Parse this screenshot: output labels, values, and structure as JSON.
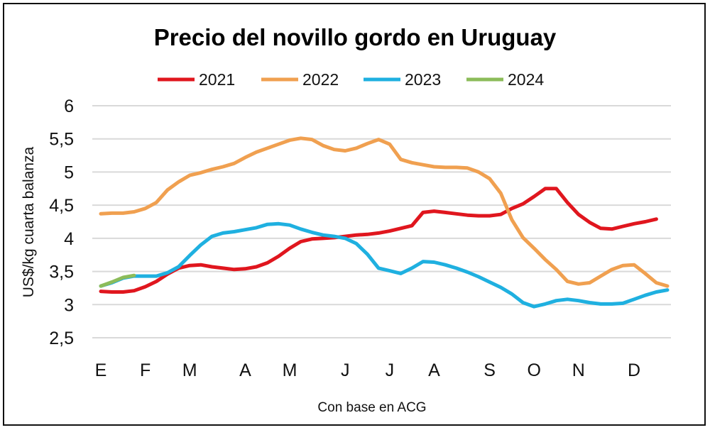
{
  "chart_data": {
    "type": "line",
    "title": "Precio del novillo gordo en Uruguay",
    "ylabel": "US$/kg cuarta balanza",
    "xlabel": "Con base en ACG",
    "ylim": [
      2.5,
      6
    ],
    "yticks": [
      "2,5",
      "3",
      "3,5",
      "4",
      "4,5",
      "5",
      "5,5",
      "6"
    ],
    "ytick_values": [
      2.5,
      3,
      3.5,
      4,
      4.5,
      5,
      5.5,
      6
    ],
    "x_unit": "week of year (0-51)",
    "xlim": [
      0,
      51
    ],
    "month_labels": [
      "E",
      "F",
      "M",
      "A",
      "M",
      "J",
      "J",
      "A",
      "S",
      "O",
      "N",
      "D"
    ],
    "month_weeks": [
      0,
      4,
      8,
      13,
      17,
      22,
      26,
      30,
      35,
      39,
      43,
      48
    ],
    "grid": true,
    "legend_position": "top",
    "series": [
      {
        "name": "2021",
        "color": "#e0161e",
        "values": [
          3.2,
          3.19,
          3.19,
          3.21,
          3.27,
          3.35,
          3.46,
          3.55,
          3.59,
          3.6,
          3.57,
          3.55,
          3.53,
          3.54,
          3.57,
          3.63,
          3.73,
          3.85,
          3.95,
          3.99,
          4.0,
          4.01,
          4.03,
          4.05,
          4.06,
          4.08,
          4.11,
          4.15,
          4.19,
          4.39,
          4.41,
          4.39,
          4.37,
          4.35,
          4.34,
          4.34,
          4.36,
          4.45,
          4.52,
          4.63,
          4.75,
          4.75,
          4.54,
          4.36,
          4.24,
          4.15,
          4.14,
          4.18,
          4.22,
          4.25,
          4.29
        ]
      },
      {
        "name": "2022",
        "color": "#f0a050",
        "values": [
          4.37,
          4.38,
          4.38,
          4.4,
          4.45,
          4.54,
          4.73,
          4.85,
          4.95,
          4.99,
          5.04,
          5.08,
          5.13,
          5.22,
          5.3,
          5.36,
          5.42,
          5.48,
          5.51,
          5.49,
          5.4,
          5.34,
          5.32,
          5.36,
          5.43,
          5.49,
          5.42,
          5.19,
          5.14,
          5.11,
          5.08,
          5.07,
          5.07,
          5.06,
          5.0,
          4.9,
          4.68,
          4.28,
          4.01,
          3.85,
          3.68,
          3.53,
          3.35,
          3.31,
          3.33,
          3.43,
          3.53,
          3.59,
          3.6,
          3.47,
          3.33,
          3.28
        ]
      },
      {
        "name": "2023",
        "color": "#1fb0e0",
        "values": [
          3.28,
          3.33,
          3.4,
          3.43,
          3.43,
          3.43,
          3.48,
          3.57,
          3.74,
          3.9,
          4.03,
          4.08,
          4.1,
          4.13,
          4.16,
          4.21,
          4.22,
          4.2,
          4.14,
          4.09,
          4.05,
          4.03,
          4.0,
          3.92,
          3.76,
          3.55,
          3.51,
          3.47,
          3.55,
          3.65,
          3.64,
          3.6,
          3.55,
          3.49,
          3.42,
          3.34,
          3.26,
          3.16,
          3.03,
          2.97,
          3.01,
          3.06,
          3.08,
          3.06,
          3.03,
          3.01,
          3.01,
          3.02,
          3.08,
          3.14,
          3.19,
          3.22
        ]
      },
      {
        "name": "2024",
        "color": "#8cbc5a",
        "values": [
          3.28,
          3.34,
          3.41,
          3.44
        ]
      }
    ]
  }
}
